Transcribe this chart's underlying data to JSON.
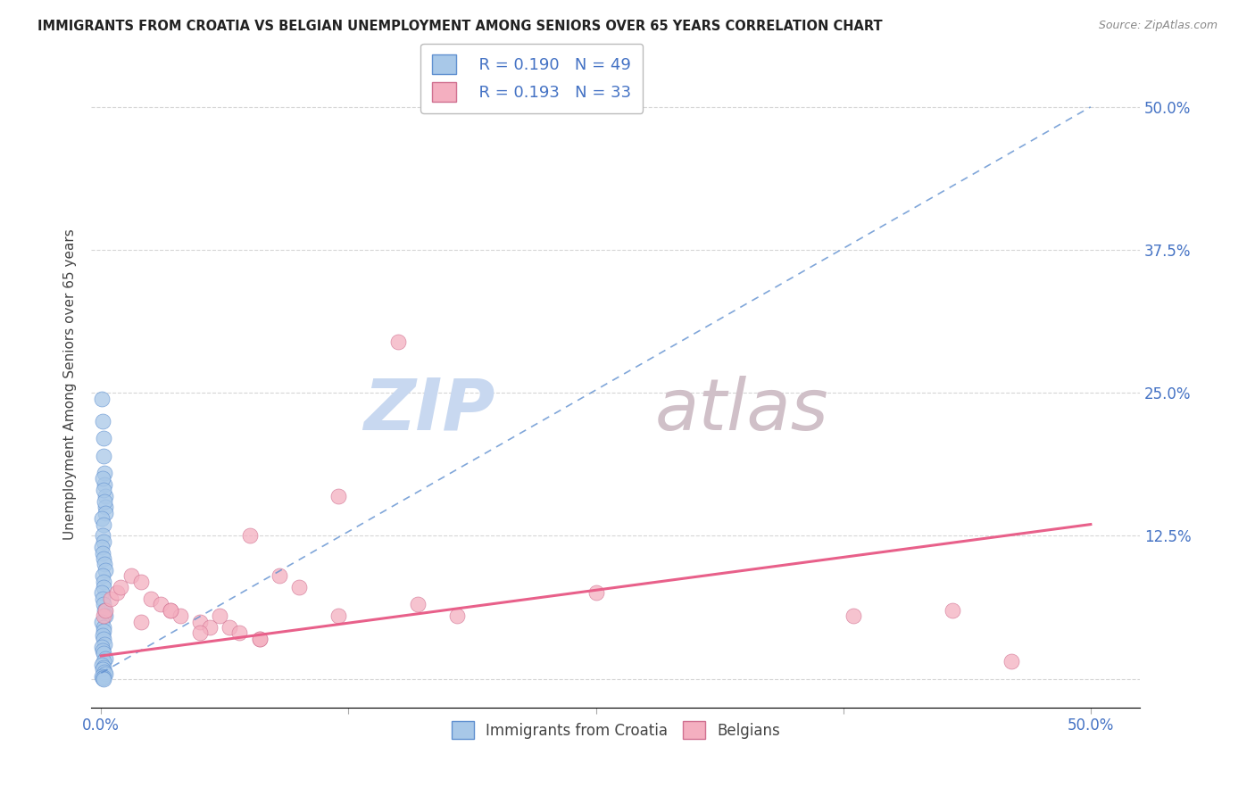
{
  "title": "IMMIGRANTS FROM CROATIA VS BELGIAN UNEMPLOYMENT AMONG SENIORS OVER 65 YEARS CORRELATION CHART",
  "source": "Source: ZipAtlas.com",
  "ylabel": "Unemployment Among Seniors over 65 years",
  "yticks": [
    0.0,
    0.125,
    0.25,
    0.375,
    0.5
  ],
  "ytick_labels": [
    "",
    "12.5%",
    "25.0%",
    "37.5%",
    "50.0%"
  ],
  "xticks": [
    0.0,
    0.125,
    0.25,
    0.375,
    0.5
  ],
  "xtick_labels": [
    "0.0%",
    "",
    "",
    "",
    "50.0%"
  ],
  "xlim": [
    -0.005,
    0.525
  ],
  "ylim": [
    -0.025,
    0.54
  ],
  "legend_r1": "R = 0.190",
  "legend_n1": "N = 49",
  "legend_r2": "R = 0.193",
  "legend_n2": "N = 33",
  "legend_label1": "Immigrants from Croatia",
  "legend_label2": "Belgians",
  "color_croatia": "#a8c8e8",
  "color_belgians": "#f4afc0",
  "color_trend_croatia": "#6090d0",
  "color_trend_belgians": "#e8608a",
  "watermark_zip_color": "#c8d8f0",
  "watermark_atlas_color": "#d0c0c8",
  "croatia_x": [
    0.0005,
    0.0008,
    0.001,
    0.0012,
    0.0015,
    0.0018,
    0.002,
    0.0022,
    0.0008,
    0.001,
    0.0015,
    0.002,
    0.0005,
    0.001,
    0.0008,
    0.0012,
    0.0005,
    0.0008,
    0.001,
    0.0015,
    0.002,
    0.0008,
    0.001,
    0.0012,
    0.0005,
    0.0008,
    0.001,
    0.0015,
    0.002,
    0.0005,
    0.001,
    0.0012,
    0.0008,
    0.001,
    0.0015,
    0.0005,
    0.0008,
    0.001,
    0.002,
    0.0012,
    0.0005,
    0.001,
    0.0008,
    0.0015,
    0.002,
    0.0005,
    0.001,
    0.0008,
    0.0012
  ],
  "croatia_y": [
    0.245,
    0.225,
    0.21,
    0.195,
    0.18,
    0.17,
    0.16,
    0.15,
    0.175,
    0.165,
    0.155,
    0.145,
    0.14,
    0.135,
    0.125,
    0.12,
    0.115,
    0.11,
    0.105,
    0.1,
    0.095,
    0.09,
    0.085,
    0.08,
    0.075,
    0.07,
    0.065,
    0.06,
    0.055,
    0.05,
    0.045,
    0.042,
    0.038,
    0.035,
    0.03,
    0.028,
    0.025,
    0.022,
    0.018,
    0.015,
    0.012,
    0.01,
    0.008,
    0.006,
    0.004,
    0.002,
    0.001,
    0.0005,
    0.0
  ],
  "belgians_x": [
    0.001,
    0.002,
    0.005,
    0.008,
    0.01,
    0.015,
    0.02,
    0.025,
    0.03,
    0.035,
    0.04,
    0.05,
    0.06,
    0.065,
    0.07,
    0.075,
    0.08,
    0.09,
    0.1,
    0.12,
    0.15,
    0.18,
    0.02,
    0.035,
    0.055,
    0.12,
    0.16,
    0.25,
    0.38,
    0.43,
    0.46,
    0.05,
    0.08
  ],
  "belgians_y": [
    0.055,
    0.06,
    0.07,
    0.075,
    0.08,
    0.09,
    0.085,
    0.07,
    0.065,
    0.06,
    0.055,
    0.05,
    0.055,
    0.045,
    0.04,
    0.125,
    0.035,
    0.09,
    0.08,
    0.16,
    0.295,
    0.055,
    0.05,
    0.06,
    0.045,
    0.055,
    0.065,
    0.075,
    0.055,
    0.06,
    0.015,
    0.04,
    0.035
  ],
  "trend_croatia_x0": 0.0,
  "trend_croatia_y0": 0.005,
  "trend_croatia_x1": 0.5,
  "trend_croatia_y1": 0.5,
  "trend_belgians_x0": 0.0,
  "trend_belgians_y0": 0.02,
  "trend_belgians_x1": 0.5,
  "trend_belgians_y1": 0.135
}
